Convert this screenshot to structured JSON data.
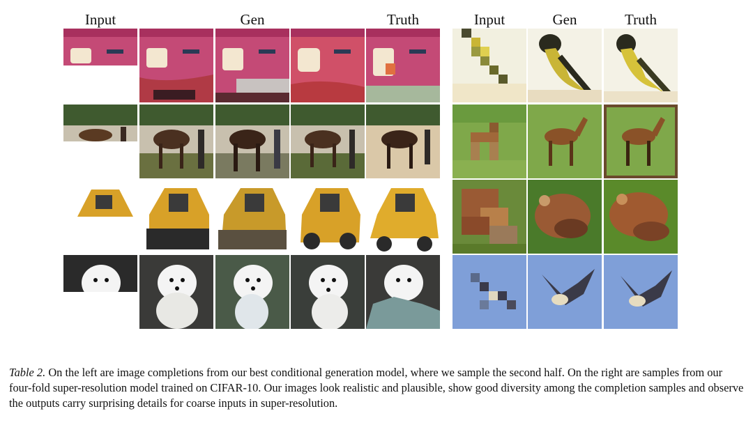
{
  "left_panel": {
    "headers": [
      "Input",
      "",
      "Gen",
      "",
      "Truth"
    ]
  },
  "right_panel": {
    "headers": [
      "Input",
      "Gen",
      "Truth"
    ]
  },
  "caption": {
    "label": "Table 2.",
    "text": " On the left are image completions from our best conditional generation model, where we sample the second half. On the right are samples from our four-fold super-resolution model trained on CIFAR-10. Our images look realistic and plausible, show good diversity among the completion samples and observe the outputs carry surprising details for coarse inputs in super-resolution."
  },
  "colors": {
    "car": "#c0406a",
    "horse": "#6a4a2c",
    "truck": "#d8a128",
    "dog": "#f2f2f2",
    "yellow_bird": "#c9b536",
    "horse_grass": "#7fa84a",
    "frog": "#9a5a34",
    "sky": "#7f9fd8"
  }
}
